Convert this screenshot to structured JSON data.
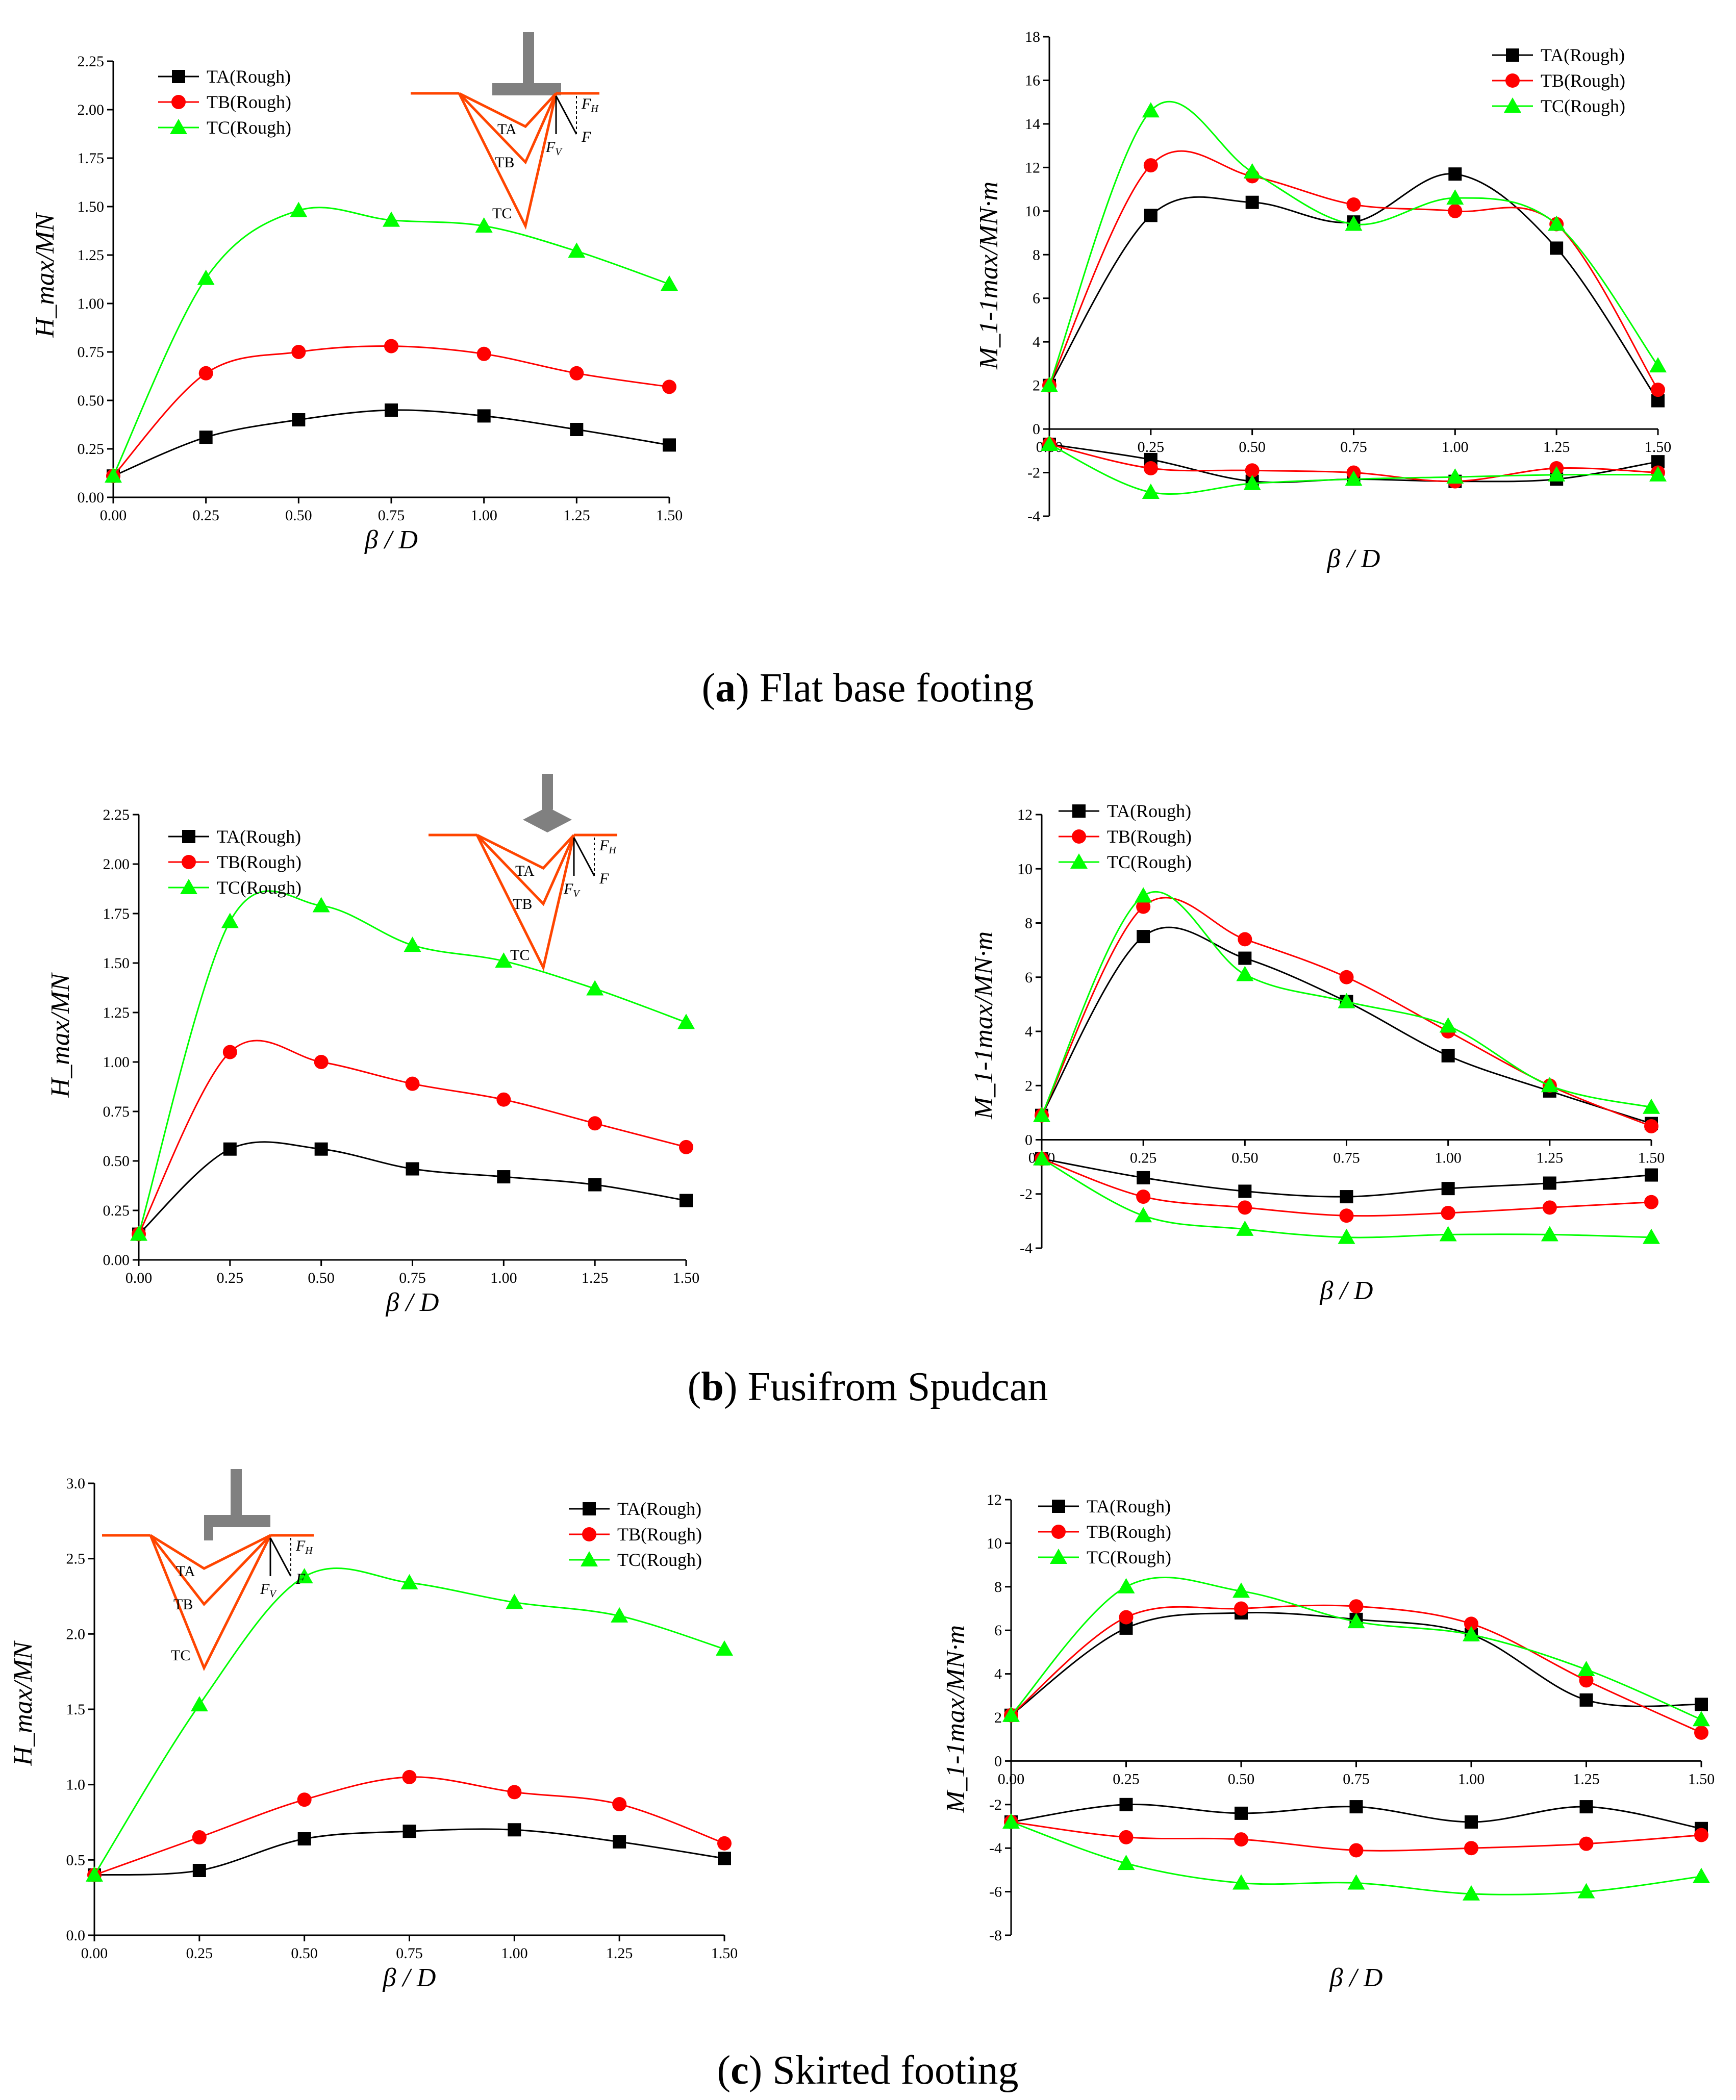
{
  "colors": {
    "TA": "#000000",
    "TB": "#ff0000",
    "TC": "#00ff00",
    "sketch": "#ff4500",
    "footing": "#808080"
  },
  "captions": [
    {
      "letter": "a",
      "text": ") Flat base footing",
      "open": "("
    },
    {
      "letter": "b",
      "text": ") Fusifrom Spudcan",
      "open": "("
    },
    {
      "letter": "c",
      "text": ") Skirted footing",
      "open": "("
    }
  ],
  "sketch_labels": {
    "ta": "TA",
    "tb": "TB",
    "tc": "TC",
    "fh": "F",
    "fh_sub": "H",
    "fv": "F",
    "fv_sub": "V",
    "fz": "F"
  },
  "chart_data": [
    {
      "type": "scatter",
      "panel": "a-left",
      "xlabel": "β / D",
      "ylabel": "H_max/MN",
      "xlim": [
        0,
        1.5
      ],
      "ylim": [
        0,
        2.25
      ],
      "xticks": [
        "0.00",
        "0.25",
        "0.50",
        "0.75",
        "1.00",
        "1.25",
        "1.50"
      ],
      "yticks": [
        "0.00",
        "0.25",
        "0.50",
        "0.75",
        "1.00",
        "1.25",
        "1.50",
        "1.75",
        "2.00",
        "2.25"
      ],
      "legend": "top-left",
      "x": [
        0,
        0.25,
        0.5,
        0.75,
        1.0,
        1.25,
        1.5
      ],
      "series": [
        {
          "name": "TA(Rough)",
          "marker": "square",
          "values": [
            0.11,
            0.31,
            0.4,
            0.45,
            0.42,
            0.35,
            0.27
          ]
        },
        {
          "name": "TB(Rough)",
          "marker": "circle",
          "values": [
            0.11,
            0.64,
            0.75,
            0.78,
            0.74,
            0.64,
            0.57
          ]
        },
        {
          "name": "TC(Rough)",
          "marker": "triangle",
          "values": [
            0.11,
            1.13,
            1.48,
            1.43,
            1.4,
            1.27,
            1.1
          ]
        }
      ]
    },
    {
      "type": "scatter",
      "panel": "a-right",
      "xlabel": "β / D",
      "ylabel": "M_1-1max/MN·m",
      "xlim": [
        0,
        1.5
      ],
      "ylim": [
        -4,
        18
      ],
      "xticks": [
        "0.00",
        "0.25",
        "0.50",
        "0.75",
        "1.00",
        "1.25",
        "1.50"
      ],
      "yticks": [
        "-4",
        "-2",
        "0",
        "2",
        "4",
        "6",
        "8",
        "10",
        "12",
        "14",
        "16",
        "18"
      ],
      "legend": "top-right",
      "x": [
        0,
        0.25,
        0.5,
        0.75,
        1.0,
        1.25,
        1.5
      ],
      "series": [
        {
          "name": "TA(Rough)",
          "marker": "square",
          "values": [
            2.0,
            9.8,
            10.4,
            9.5,
            11.7,
            8.3,
            1.3
          ],
          "lower": [
            -0.7,
            -1.4,
            -2.4,
            -2.3,
            -2.4,
            -2.3,
            -1.5
          ]
        },
        {
          "name": "TB(Rough)",
          "marker": "circle",
          "values": [
            2.0,
            12.1,
            11.6,
            10.3,
            10.0,
            9.4,
            1.8
          ],
          "lower": [
            -0.7,
            -1.8,
            -1.9,
            -2.0,
            -2.4,
            -1.8,
            -2.0
          ]
        },
        {
          "name": "TC(Rough)",
          "marker": "triangle",
          "values": [
            2.0,
            14.6,
            11.8,
            9.4,
            10.6,
            9.4,
            2.9
          ],
          "lower": [
            -0.7,
            -2.9,
            -2.5,
            -2.3,
            -2.2,
            -2.1,
            -2.1
          ]
        }
      ]
    },
    {
      "type": "scatter",
      "panel": "b-left",
      "xlabel": "β / D",
      "ylabel": "H_max/MN",
      "xlim": [
        0,
        1.5
      ],
      "ylim": [
        0,
        2.25
      ],
      "xticks": [
        "0.00",
        "0.25",
        "0.50",
        "0.75",
        "1.00",
        "1.25",
        "1.50"
      ],
      "yticks": [
        "0.00",
        "0.25",
        "0.50",
        "0.75",
        "1.00",
        "1.25",
        "1.50",
        "1.75",
        "2.00",
        "2.25"
      ],
      "legend": "top-left",
      "x": [
        0,
        0.25,
        0.5,
        0.75,
        1.0,
        1.25,
        1.5
      ],
      "series": [
        {
          "name": "TA(Rough)",
          "marker": "square",
          "values": [
            0.13,
            0.56,
            0.56,
            0.46,
            0.42,
            0.38,
            0.3
          ]
        },
        {
          "name": "TB(Rough)",
          "marker": "circle",
          "values": [
            0.13,
            1.05,
            1.0,
            0.89,
            0.81,
            0.69,
            0.57
          ]
        },
        {
          "name": "TC(Rough)",
          "marker": "triangle",
          "values": [
            0.13,
            1.71,
            1.79,
            1.59,
            1.51,
            1.37,
            1.2
          ]
        }
      ]
    },
    {
      "type": "scatter",
      "panel": "b-right",
      "xlabel": "β / D",
      "ylabel": "M_1-1max/MN·m",
      "xlim": [
        0,
        1.5
      ],
      "ylim": [
        -4,
        12
      ],
      "xticks": [
        "0.00",
        "0.25",
        "0.50",
        "0.75",
        "1.00",
        "1.25",
        "1.50"
      ],
      "yticks": [
        "-4",
        "-2",
        "0",
        "2",
        "4",
        "6",
        "8",
        "10",
        "12"
      ],
      "legend": "top-left",
      "x": [
        0,
        0.25,
        0.5,
        0.75,
        1.0,
        1.25,
        1.5
      ],
      "series": [
        {
          "name": "TA(Rough)",
          "marker": "square",
          "values": [
            0.9,
            7.5,
            6.7,
            5.1,
            3.1,
            1.8,
            0.6
          ],
          "lower": [
            -0.7,
            -1.4,
            -1.9,
            -2.1,
            -1.8,
            -1.6,
            -1.3
          ]
        },
        {
          "name": "TB(Rough)",
          "marker": "circle",
          "values": [
            0.9,
            8.6,
            7.4,
            6.0,
            4.0,
            2.0,
            0.5
          ],
          "lower": [
            -0.7,
            -2.1,
            -2.5,
            -2.8,
            -2.7,
            -2.5,
            -2.3
          ]
        },
        {
          "name": "TC(Rough)",
          "marker": "triangle",
          "values": [
            0.9,
            9.0,
            6.1,
            5.1,
            4.2,
            2.0,
            1.2
          ],
          "lower": [
            -0.7,
            -2.8,
            -3.3,
            -3.6,
            -3.5,
            -3.5,
            -3.6
          ]
        }
      ]
    },
    {
      "type": "scatter",
      "panel": "c-left",
      "xlabel": "β / D",
      "ylabel": "H_max/MN",
      "xlim": [
        0,
        1.5
      ],
      "ylim": [
        0,
        3.0
      ],
      "xticks": [
        "0.00",
        "0.25",
        "0.50",
        "0.75",
        "1.00",
        "1.25",
        "1.50"
      ],
      "yticks": [
        "0.0",
        "0.5",
        "1.0",
        "1.5",
        "2.0",
        "2.5",
        "3.0"
      ],
      "legend": "top-right",
      "x": [
        0,
        0.25,
        0.5,
        0.75,
        1.0,
        1.25,
        1.5
      ],
      "series": [
        {
          "name": "TA(Rough)",
          "marker": "square",
          "values": [
            0.4,
            0.43,
            0.64,
            0.69,
            0.7,
            0.62,
            0.51
          ]
        },
        {
          "name": "TB(Rough)",
          "marker": "circle",
          "values": [
            0.4,
            0.65,
            0.9,
            1.05,
            0.95,
            0.87,
            0.61
          ]
        },
        {
          "name": "TC(Rough)",
          "marker": "triangle",
          "values": [
            0.4,
            1.53,
            2.38,
            2.34,
            2.21,
            2.12,
            1.9
          ]
        }
      ]
    },
    {
      "type": "scatter",
      "panel": "c-right",
      "xlabel": "β / D",
      "ylabel": "M_1-1max/MN·m",
      "xlim": [
        0,
        1.5
      ],
      "ylim": [
        -8,
        12
      ],
      "xticks": [
        "0.00",
        "0.25",
        "0.50",
        "0.75",
        "1.00",
        "1.25",
        "1.50"
      ],
      "yticks": [
        "-8",
        "-6",
        "-4",
        "-2",
        "0",
        "2",
        "4",
        "6",
        "8",
        "10",
        "12"
      ],
      "legend": "top-left",
      "x": [
        0,
        0.25,
        0.5,
        0.75,
        1.0,
        1.25,
        1.5
      ],
      "series": [
        {
          "name": "TA(Rough)",
          "marker": "square",
          "values": [
            2.1,
            6.1,
            6.8,
            6.5,
            5.8,
            2.8,
            2.6
          ],
          "lower": [
            -2.8,
            -2.0,
            -2.4,
            -2.1,
            -2.8,
            -2.1,
            -3.1
          ]
        },
        {
          "name": "TB(Rough)",
          "marker": "circle",
          "values": [
            2.1,
            6.6,
            7.0,
            7.1,
            6.3,
            3.7,
            1.3
          ],
          "lower": [
            -2.8,
            -3.5,
            -3.6,
            -4.1,
            -4.0,
            -3.8,
            -3.4
          ]
        },
        {
          "name": "TC(Rough)",
          "marker": "triangle",
          "values": [
            2.1,
            8.0,
            7.8,
            6.4,
            5.8,
            4.2,
            1.9
          ],
          "lower": [
            -2.8,
            -4.7,
            -5.6,
            -5.6,
            -6.1,
            -6.0,
            -5.3
          ]
        }
      ]
    }
  ]
}
